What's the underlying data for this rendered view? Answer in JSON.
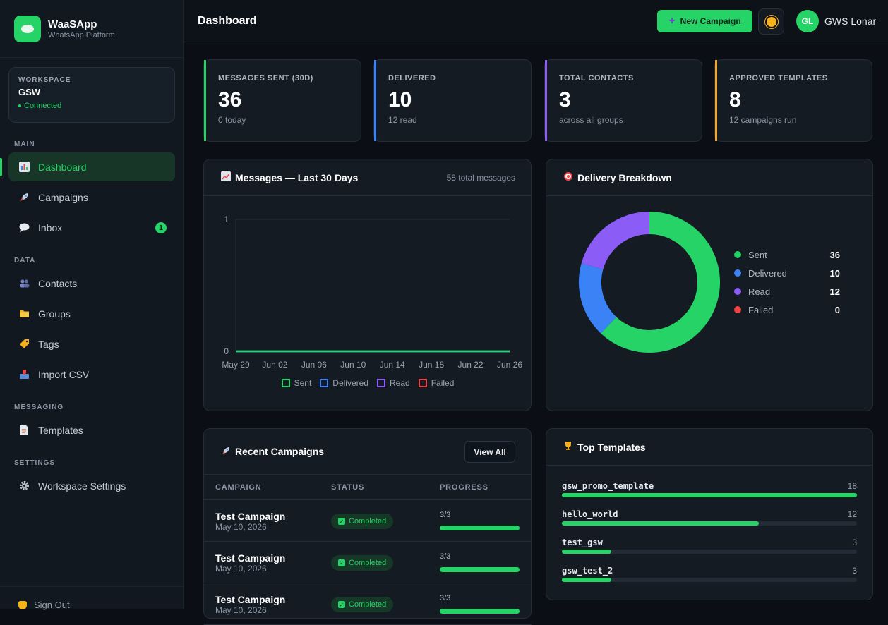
{
  "brand": {
    "name": "WaaSApp",
    "subtitle": "WhatsApp Platform"
  },
  "workspace": {
    "label": "WORKSPACE",
    "name": "GSW",
    "status": "Connected"
  },
  "nav": {
    "sections": {
      "main": "MAIN",
      "data": "DATA",
      "messaging": "MESSAGING",
      "settings": "SETTINGS"
    },
    "items": [
      {
        "label": "Dashboard",
        "icon": "bar-chart-icon",
        "active": true
      },
      {
        "label": "Campaigns",
        "icon": "rocket-icon"
      },
      {
        "label": "Inbox",
        "icon": "speech-bubble-icon",
        "badge": "1"
      },
      {
        "label": "Contacts",
        "icon": "people-icon"
      },
      {
        "label": "Groups",
        "icon": "folder-icon"
      },
      {
        "label": "Tags",
        "icon": "tag-icon"
      },
      {
        "label": "Import CSV",
        "icon": "inbox-tray-icon"
      },
      {
        "label": "Templates",
        "icon": "document-icon"
      },
      {
        "label": "Workspace Settings",
        "icon": "gear-icon"
      }
    ],
    "sign_out": "Sign Out"
  },
  "header": {
    "title": "Dashboard",
    "new_campaign": "New Campaign",
    "user_initials": "GL",
    "user_name": "GWS Lonar"
  },
  "stats": [
    {
      "label": "MESSAGES SENT (30D)",
      "value": "36",
      "sub": "0 today",
      "accent": "#25d366"
    },
    {
      "label": "DELIVERED",
      "value": "10",
      "sub": "12 read",
      "accent": "#3b82f6"
    },
    {
      "label": "TOTAL CONTACTS",
      "value": "3",
      "sub": "across all groups",
      "accent": "#8b5cf6"
    },
    {
      "label": "APPROVED TEMPLATES",
      "value": "8",
      "sub": "12 campaigns run",
      "accent": "#f5a623"
    }
  ],
  "messages_chart": {
    "title": "Messages — Last 30 Days",
    "meta": "58 total messages",
    "chart_data": {
      "type": "line",
      "x": [
        "May 29",
        "Jun 02",
        "Jun 06",
        "Jun 10",
        "Jun 14",
        "Jun 18",
        "Jun 22",
        "Jun 26"
      ],
      "ylim": [
        0,
        1
      ],
      "y_ticks": [
        "1",
        "0"
      ],
      "series": [
        {
          "name": "Sent",
          "color": "#25d366",
          "values": [
            0,
            0,
            0,
            0,
            0,
            0,
            0,
            0
          ]
        },
        {
          "name": "Delivered",
          "color": "#3b82f6",
          "values": [
            0,
            0,
            0,
            0,
            0,
            0,
            0,
            0
          ]
        },
        {
          "name": "Read",
          "color": "#8b5cf6",
          "values": [
            0,
            0,
            0,
            0,
            0,
            0,
            0,
            0
          ]
        },
        {
          "name": "Failed",
          "color": "#ef4444",
          "values": [
            0,
            0,
            0,
            0,
            0,
            0,
            0,
            0
          ]
        }
      ],
      "legend": "bottom"
    }
  },
  "delivery": {
    "title": "Delivery Breakdown",
    "chart_data": {
      "type": "pie",
      "categories": [
        "Sent",
        "Delivered",
        "Read",
        "Failed"
      ],
      "values": [
        36,
        10,
        12,
        0
      ],
      "colors": [
        "#25d366",
        "#3b82f6",
        "#8b5cf6",
        "#ef4444"
      ],
      "legend": "right"
    }
  },
  "campaigns": {
    "title": "Recent Campaigns",
    "view_all": "View All",
    "columns": [
      "CAMPAIGN",
      "STATUS",
      "PROGRESS"
    ],
    "rows": [
      {
        "name": "Test Campaign",
        "date": "May 10, 2026",
        "status": "Completed",
        "progress": "3/3",
        "fraction": 1
      },
      {
        "name": "Test Campaign",
        "date": "May 10, 2026",
        "status": "Completed",
        "progress": "3/3",
        "fraction": 1
      },
      {
        "name": "Test Campaign",
        "date": "May 10, 2026",
        "status": "Completed",
        "progress": "3/3",
        "fraction": 1
      }
    ]
  },
  "top_templates": {
    "title": "Top Templates",
    "items": [
      {
        "name": "gsw_promo_template",
        "count": 18,
        "fraction": 1.0
      },
      {
        "name": "hello_world",
        "count": 12,
        "fraction": 0.667
      },
      {
        "name": "test_gsw",
        "count": 3,
        "fraction": 0.167
      },
      {
        "name": "gsw_test_2",
        "count": 3,
        "fraction": 0.167
      }
    ]
  }
}
